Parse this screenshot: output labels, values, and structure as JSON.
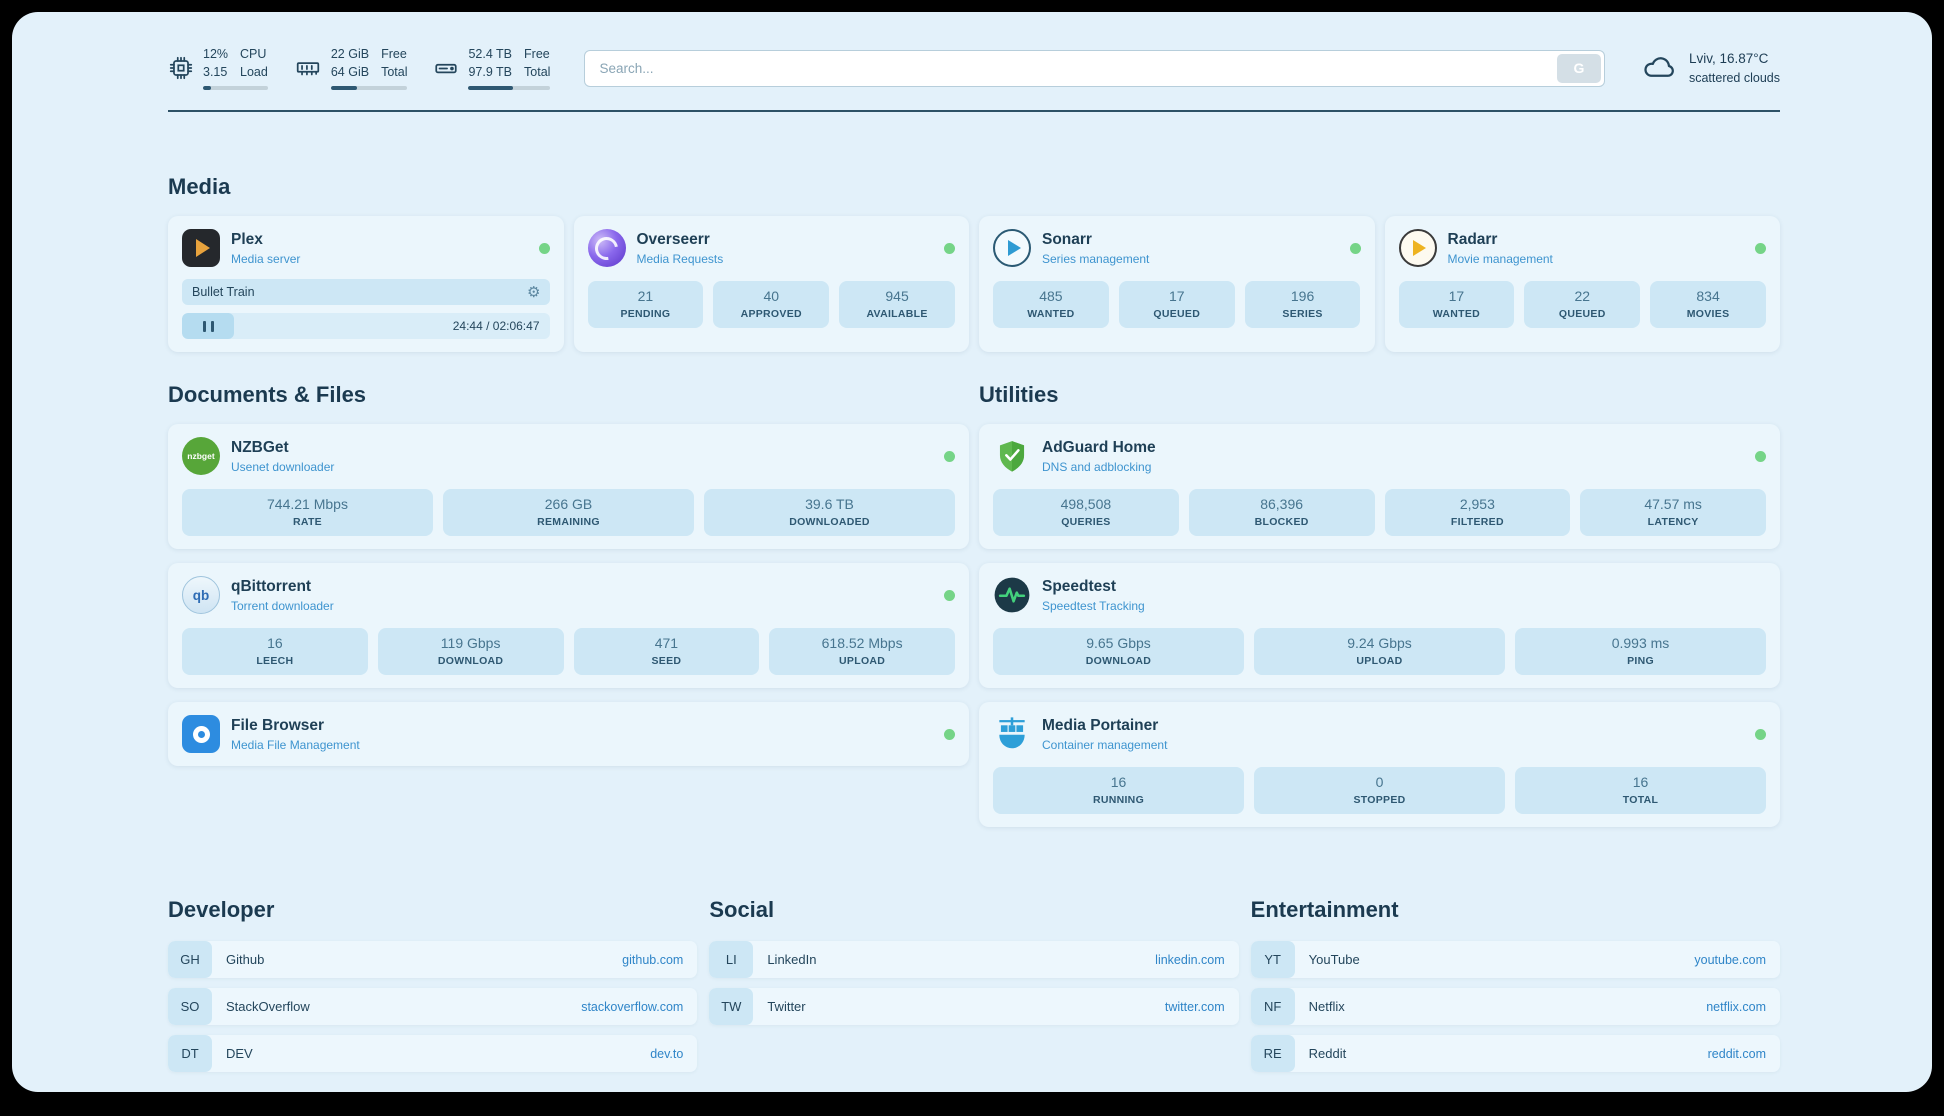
{
  "topbar": {
    "cpu": {
      "value_top": "12%",
      "value_bottom": "3.15",
      "label_top": "CPU",
      "label_bottom": "Load",
      "bar_percent": 12
    },
    "ram": {
      "value_top": "22 GiB",
      "value_bottom": "64 GiB",
      "label_top": "Free",
      "label_bottom": "Total",
      "bar_percent": 34
    },
    "disk": {
      "value_top": "52.4 TB",
      "value_bottom": "97.9 TB",
      "label_top": "Free",
      "label_bottom": "Total",
      "bar_percent": 54
    },
    "search": {
      "placeholder": "Search...",
      "provider_label": "G"
    },
    "weather": {
      "location": "Lviv, 16.87°C",
      "condition": "scattered clouds"
    }
  },
  "sections": {
    "media": {
      "title": "Media",
      "plex": {
        "name": "Plex",
        "subtitle": "Media server",
        "now_playing": "Bullet Train",
        "time": "24:44 / 02:06:47"
      },
      "overseerr": {
        "name": "Overseerr",
        "subtitle": "Media Requests",
        "stats": [
          {
            "value": "21",
            "label": "PENDING"
          },
          {
            "value": "40",
            "label": "APPROVED"
          },
          {
            "value": "945",
            "label": "AVAILABLE"
          }
        ]
      },
      "sonarr": {
        "name": "Sonarr",
        "subtitle": "Series management",
        "stats": [
          {
            "value": "485",
            "label": "WANTED"
          },
          {
            "value": "17",
            "label": "QUEUED"
          },
          {
            "value": "196",
            "label": "SERIES"
          }
        ]
      },
      "radarr": {
        "name": "Radarr",
        "subtitle": "Movie management",
        "stats": [
          {
            "value": "17",
            "label": "WANTED"
          },
          {
            "value": "22",
            "label": "QUEUED"
          },
          {
            "value": "834",
            "label": "MOVIES"
          }
        ]
      }
    },
    "documents": {
      "title": "Documents & Files",
      "nzbget": {
        "name": "NZBGet",
        "subtitle": "Usenet downloader",
        "stats": [
          {
            "value": "744.21 Mbps",
            "label": "RATE"
          },
          {
            "value": "266 GB",
            "label": "REMAINING"
          },
          {
            "value": "39.6 TB",
            "label": "DOWNLOADED"
          }
        ]
      },
      "qbittorrent": {
        "name": "qBittorrent",
        "subtitle": "Torrent downloader",
        "stats": [
          {
            "value": "16",
            "label": "LEECH"
          },
          {
            "value": "119 Gbps",
            "label": "DOWNLOAD"
          },
          {
            "value": "471",
            "label": "SEED"
          },
          {
            "value": "618.52 Mbps",
            "label": "UPLOAD"
          }
        ]
      },
      "filebrowser": {
        "name": "File Browser",
        "subtitle": "Media File Management"
      }
    },
    "utilities": {
      "title": "Utilities",
      "adguard": {
        "name": "AdGuard Home",
        "subtitle": "DNS and adblocking",
        "stats": [
          {
            "value": "498,508",
            "label": "QUERIES"
          },
          {
            "value": "86,396",
            "label": "BLOCKED"
          },
          {
            "value": "2,953",
            "label": "FILTERED"
          },
          {
            "value": "47.57 ms",
            "label": "LATENCY"
          }
        ]
      },
      "speedtest": {
        "name": "Speedtest",
        "subtitle": "Speedtest Tracking",
        "stats": [
          {
            "value": "9.65 Gbps",
            "label": "DOWNLOAD"
          },
          {
            "value": "9.24 Gbps",
            "label": "UPLOAD"
          },
          {
            "value": "0.993 ms",
            "label": "PING"
          }
        ]
      },
      "portainer": {
        "name": "Media Portainer",
        "subtitle": "Container management",
        "stats": [
          {
            "value": "16",
            "label": "RUNNING"
          },
          {
            "value": "0",
            "label": "STOPPED"
          },
          {
            "value": "16",
            "label": "TOTAL"
          }
        ]
      }
    }
  },
  "bookmarks": {
    "developer": {
      "title": "Developer",
      "items": [
        {
          "abbr": "GH",
          "name": "Github",
          "url": "github.com"
        },
        {
          "abbr": "SO",
          "name": "StackOverflow",
          "url": "stackoverflow.com"
        },
        {
          "abbr": "DT",
          "name": "DEV",
          "url": "dev.to"
        }
      ]
    },
    "social": {
      "title": "Social",
      "items": [
        {
          "abbr": "LI",
          "name": "LinkedIn",
          "url": "linkedin.com"
        },
        {
          "abbr": "TW",
          "name": "Twitter",
          "url": "twitter.com"
        }
      ]
    },
    "entertainment": {
      "title": "Entertainment",
      "items": [
        {
          "abbr": "YT",
          "name": "YouTube",
          "url": "youtube.com"
        },
        {
          "abbr": "NF",
          "name": "Netflix",
          "url": "netflix.com"
        },
        {
          "abbr": "RE",
          "name": "Reddit",
          "url": "reddit.com"
        }
      ]
    }
  },
  "icons": {
    "gear": "⚙",
    "nzbget_text": "nzbget",
    "qbittorrent_text": "qb"
  },
  "colors": {
    "status_green": "#75d487",
    "link_blue": "#2f85c8",
    "subtitle_blue": "#3e94cf",
    "page_bg": "#e3f1fa"
  }
}
